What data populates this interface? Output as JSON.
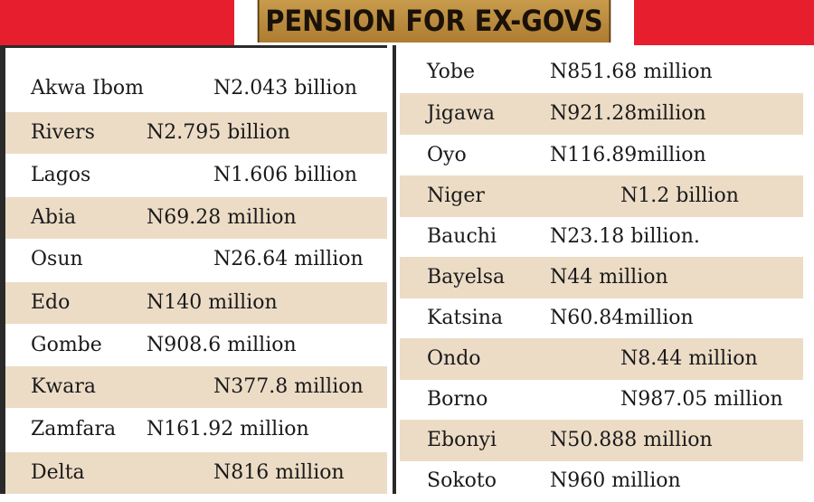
{
  "header": {
    "title": "PENSION FOR EX-GOVS"
  },
  "left_column": [
    {
      "state": "Akwa Ibom",
      "amount": "N2.043 billion"
    },
    {
      "state": "Rivers",
      "amount": "N2.795 billion"
    },
    {
      "state": "Lagos",
      "amount": "N1.606 billion"
    },
    {
      "state": "Abia",
      "amount": "N69.28 million"
    },
    {
      "state": "Osun",
      "amount": "N26.64 million"
    },
    {
      "state": "Edo",
      "amount": "N140 million"
    },
    {
      "state": "Gombe",
      "amount": "N908.6 million"
    },
    {
      "state": "Kwara",
      "amount": "N377.8 million"
    },
    {
      "state": "Zamfara",
      "amount": "N161.92 million"
    },
    {
      "state": "Delta",
      "amount": "N816 million"
    }
  ],
  "right_column": [
    {
      "state": "Yobe",
      "amount": "N851.68 million"
    },
    {
      "state": "Jigawa",
      "amount": "N921.28million"
    },
    {
      "state": "Oyo",
      "amount": "N116.89million"
    },
    {
      "state": "Niger",
      "amount": "N1.2 billion"
    },
    {
      "state": "Bauchi",
      "amount": "N23.18 billion."
    },
    {
      "state": "Bayelsa",
      "amount": "N44 million"
    },
    {
      "state": "Katsina",
      "amount": "N60.84million"
    },
    {
      "state": "Ondo",
      "amount": "N8.44 million"
    },
    {
      "state": "Borno",
      "amount": "N987.05 million"
    },
    {
      "state": "Ebonyi",
      "amount": "N50.888 million"
    },
    {
      "state": "Sokoto",
      "amount": "N960 million"
    }
  ],
  "colors": {
    "banner_red": "#e61e2e",
    "banner_gold": "#b8873c",
    "row_shade": "#ecdcc6"
  }
}
